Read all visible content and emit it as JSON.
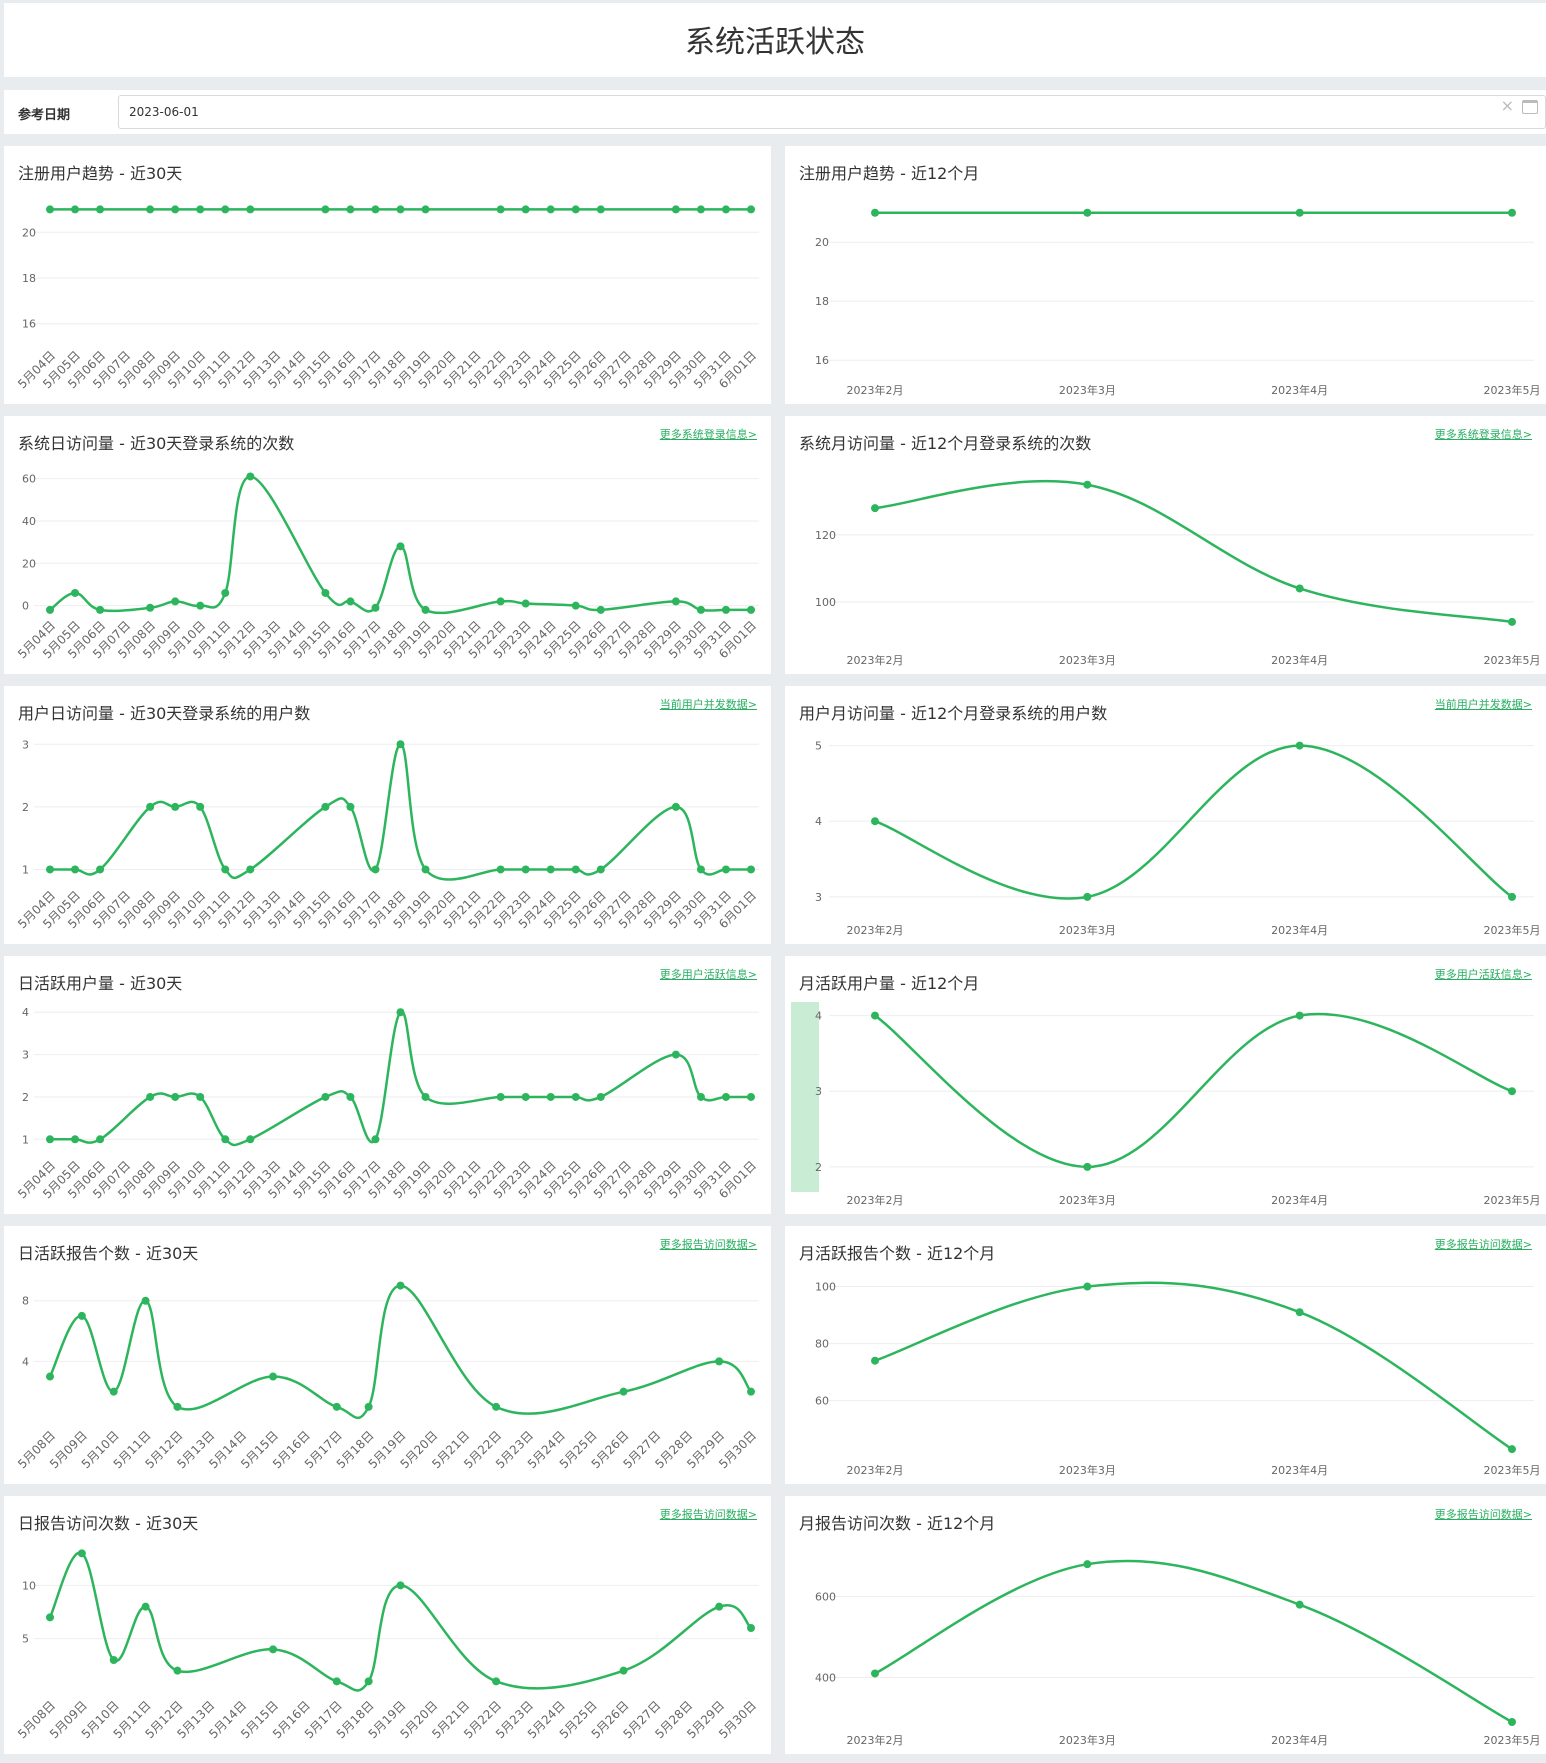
{
  "page": {
    "title": "系统活跃状态"
  },
  "filter": {
    "label": "参考日期",
    "value": "2023-06-01"
  },
  "colors": {
    "line": "#2db55d",
    "grid": "#eeeeee",
    "axis": "#666666",
    "highlight": "#c9ecd4",
    "link": "#27ae60"
  },
  "chart_data": [
    {
      "id": "reg-30",
      "type": "line",
      "title": "注册用户趋势 - 近30天",
      "more": "",
      "categories": [
        "5月04日",
        "5月05日",
        "5月06日",
        "5月07日",
        "5月08日",
        "5月09日",
        "5月10日",
        "5月11日",
        "5月12日",
        "5月13日",
        "5月14日",
        "5月15日",
        "5月16日",
        "5月17日",
        "5月18日",
        "5月19日",
        "5月20日",
        "5月21日",
        "5月22日",
        "5月23日",
        "5月24日",
        "5月25日",
        "5月26日",
        "5月27日",
        "5月28日",
        "5月29日",
        "5月30日",
        "5月31日",
        "6月01日"
      ],
      "values": [
        21,
        21,
        21,
        null,
        21,
        21,
        21,
        21,
        21,
        null,
        null,
        21,
        21,
        21,
        21,
        21,
        null,
        null,
        21,
        21,
        21,
        21,
        21,
        null,
        null,
        21,
        21,
        21,
        21
      ],
      "yticks": [
        16,
        18,
        20
      ],
      "ylim": [
        15.2,
        21.5
      ],
      "smooth": false
    },
    {
      "id": "reg-12",
      "type": "line",
      "title": "注册用户趋势 - 近12个月",
      "more": "",
      "categories": [
        "2023年2月",
        "2023年3月",
        "2023年4月",
        "2023年5月"
      ],
      "values": [
        21,
        21,
        21,
        21
      ],
      "yticks": [
        16,
        18,
        20
      ],
      "ylim": [
        15.6,
        21.5
      ],
      "smooth": false
    },
    {
      "id": "sysvisit-30",
      "type": "line",
      "title": "系统日访问量 - 近30天登录系统的次数",
      "more": "更多系统登录信息>",
      "categories": [
        "5月04日",
        "5月05日",
        "5月06日",
        "5月07日",
        "5月08日",
        "5月09日",
        "5月10日",
        "5月11日",
        "5月12日",
        "5月13日",
        "5月14日",
        "5月15日",
        "5月16日",
        "5月17日",
        "5月18日",
        "5月19日",
        "5月20日",
        "5月21日",
        "5月22日",
        "5月23日",
        "5月24日",
        "5月25日",
        "5月26日",
        "5月27日",
        "5月28日",
        "5月29日",
        "5月30日",
        "5月31日",
        "6月01日"
      ],
      "values": [
        -2,
        6,
        -2,
        null,
        -1,
        2,
        0,
        6,
        61,
        null,
        null,
        6,
        2,
        -1,
        28,
        -2,
        null,
        null,
        2,
        1,
        null,
        0,
        -2,
        null,
        null,
        2,
        -2,
        -2,
        -2
      ],
      "yticks": [
        0,
        20,
        40,
        60
      ],
      "ylim": [
        -3,
        65
      ],
      "smooth": true
    },
    {
      "id": "sysvisit-12",
      "type": "line",
      "title": "系统月访问量 - 近12个月登录系统的次数",
      "more": "更多系统登录信息>",
      "categories": [
        "2023年2月",
        "2023年3月",
        "2023年4月",
        "2023年5月"
      ],
      "values": [
        128,
        135,
        104,
        94
      ],
      "yticks": [
        100,
        120
      ],
      "ylim": [
        88,
        140
      ],
      "smooth": true
    },
    {
      "id": "uservisit-30",
      "type": "line",
      "title": "用户日访问量 - 近30天登录系统的用户数",
      "more": "当前用户并发数据>",
      "categories": [
        "5月04日",
        "5月05日",
        "5月06日",
        "5月07日",
        "5月08日",
        "5月09日",
        "5月10日",
        "5月11日",
        "5月12日",
        "5月13日",
        "5月14日",
        "5月15日",
        "5月16日",
        "5月17日",
        "5月18日",
        "5月19日",
        "5月20日",
        "5月21日",
        "5月22日",
        "5月23日",
        "5月24日",
        "5月25日",
        "5月26日",
        "5月27日",
        "5月28日",
        "5月29日",
        "5月30日",
        "5月31日",
        "6月01日"
      ],
      "values": [
        1,
        1,
        1,
        null,
        2,
        2,
        2,
        1,
        1,
        null,
        null,
        2,
        2,
        1,
        3,
        1,
        null,
        null,
        1,
        1,
        1,
        1,
        1,
        null,
        null,
        2,
        1,
        1,
        1
      ],
      "yticks": [
        1,
        2,
        3
      ],
      "ylim": [
        0.8,
        3.1
      ],
      "smooth": true
    },
    {
      "id": "uservisit-12",
      "type": "line",
      "title": "用户月访问量 - 近12个月登录系统的用户数",
      "more": "当前用户并发数据>",
      "categories": [
        "2023年2月",
        "2023年3月",
        "2023年4月",
        "2023年5月"
      ],
      "values": [
        4,
        3,
        5,
        3
      ],
      "yticks": [
        3,
        4,
        5
      ],
      "ylim": [
        2.8,
        5.1
      ],
      "smooth": true
    },
    {
      "id": "dau-30",
      "type": "line",
      "title": "日活跃用户量 - 近30天",
      "more": "更多用户活跃信息>",
      "categories": [
        "5月04日",
        "5月05日",
        "5月06日",
        "5月07日",
        "5月08日",
        "5月09日",
        "5月10日",
        "5月11日",
        "5月12日",
        "5月13日",
        "5月14日",
        "5月15日",
        "5月16日",
        "5月17日",
        "5月18日",
        "5月19日",
        "5月20日",
        "5月21日",
        "5月22日",
        "5月23日",
        "5月24日",
        "5月25日",
        "5月26日",
        "5月27日",
        "5月28日",
        "5月29日",
        "5月30日",
        "5月31日",
        "6月01日"
      ],
      "values": [
        1,
        1,
        1,
        null,
        2,
        2,
        2,
        1,
        1,
        null,
        null,
        2,
        2,
        1,
        4,
        2,
        null,
        null,
        2,
        2,
        2,
        2,
        2,
        null,
        null,
        3,
        2,
        2,
        2
      ],
      "yticks": [
        1,
        2,
        3,
        4
      ],
      "ylim": [
        0.7,
        4.1
      ],
      "smooth": true
    },
    {
      "id": "mau-12",
      "type": "line",
      "title": "月活跃用户量 - 近12个月",
      "more": "更多用户活跃信息>",
      "categories": [
        "2023年2月",
        "2023年3月",
        "2023年4月",
        "2023年5月"
      ],
      "values": [
        4,
        2,
        4,
        3
      ],
      "yticks": [
        2,
        3,
        4
      ],
      "ylim": [
        1.8,
        4.1
      ],
      "smooth": true,
      "highlight_yaxis": true
    },
    {
      "id": "report-30",
      "type": "line",
      "title": "日活跃报告个数 - 近30天",
      "more": "更多报告访问数据>",
      "categories": [
        "5月08日",
        "5月09日",
        "5月10日",
        "5月11日",
        "5月12日",
        "5月13日",
        "5月14日",
        "5月15日",
        "5月16日",
        "5月17日",
        "5月18日",
        "5月19日",
        "5月20日",
        "5月21日",
        "5月22日",
        "5月23日",
        "5月24日",
        "5月25日",
        "5月26日",
        "5月27日",
        "5月28日",
        "5月29日",
        "5月30日"
      ],
      "values": [
        3,
        7,
        2,
        8,
        1,
        null,
        null,
        3,
        null,
        1,
        1,
        9,
        null,
        null,
        1,
        null,
        null,
        null,
        2,
        null,
        null,
        4,
        2
      ],
      "yticks": [
        4,
        8
      ],
      "ylim": [
        0,
        9.5
      ],
      "smooth": true
    },
    {
      "id": "report-12",
      "type": "line",
      "title": "月活跃报告个数 - 近12个月",
      "more": "更多报告访问数据>",
      "categories": [
        "2023年2月",
        "2023年3月",
        "2023年4月",
        "2023年5月"
      ],
      "values": [
        74,
        100,
        91,
        43
      ],
      "yticks": [
        60,
        80,
        100
      ],
      "ylim": [
        42,
        103
      ],
      "smooth": true
    },
    {
      "id": "reportvisit-30",
      "type": "line",
      "title": "日报告访问次数 - 近30天",
      "more": "更多报告访问数据>",
      "categories": [
        "5月08日",
        "5月09日",
        "5月10日",
        "5月11日",
        "5月12日",
        "5月13日",
        "5月14日",
        "5月15日",
        "5月16日",
        "5月17日",
        "5月18日",
        "5月19日",
        "5月20日",
        "5月21日",
        "5月22日",
        "5月23日",
        "5月24日",
        "5月25日",
        "5月26日",
        "5月27日",
        "5月28日",
        "5月29日",
        "5月30日"
      ],
      "values": [
        7,
        13,
        3,
        8,
        2,
        null,
        null,
        4,
        null,
        1,
        1,
        10,
        null,
        null,
        1,
        null,
        null,
        null,
        2,
        null,
        null,
        8,
        6
      ],
      "yticks": [
        5,
        10
      ],
      "ylim": [
        0,
        13.5
      ],
      "smooth": true
    },
    {
      "id": "reportvisit-12",
      "type": "line",
      "title": "月报告访问次数 - 近12个月",
      "more": "更多报告访问数据>",
      "categories": [
        "2023年2月",
        "2023年3月",
        "2023年4月",
        "2023年5月"
      ],
      "values": [
        410,
        680,
        580,
        290
      ],
      "yticks": [
        400,
        600
      ],
      "ylim": [
        290,
        720
      ],
      "smooth": true
    }
  ]
}
